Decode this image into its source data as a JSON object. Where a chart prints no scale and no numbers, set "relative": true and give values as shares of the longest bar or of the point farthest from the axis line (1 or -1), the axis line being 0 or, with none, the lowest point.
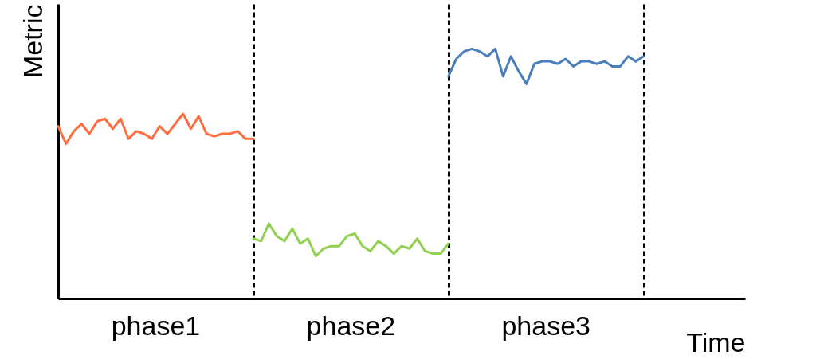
{
  "chart_data": {
    "type": "line",
    "relative": true,
    "xlabel": "Time",
    "ylabel": "Metric",
    "line_style": "solid",
    "grid": "x",
    "categories": [
      null,
      null,
      null,
      null,
      null,
      null,
      null,
      null,
      null,
      null,
      null,
      null,
      null,
      null,
      null,
      null,
      null,
      null,
      null,
      null,
      null,
      null,
      null,
      null,
      null,
      null,
      null,
      null,
      null,
      null,
      null,
      null,
      null,
      null,
      null,
      null,
      null,
      null,
      null,
      null,
      null,
      null,
      null,
      null,
      null,
      null,
      null,
      null,
      null,
      null,
      null,
      null,
      null,
      null,
      null,
      null,
      null,
      null,
      null,
      null,
      null,
      null,
      null,
      null,
      null,
      null,
      null,
      null,
      null,
      null,
      null,
      null,
      null,
      null,
      null,
      null,
      null,
      null,
      null,
      null,
      null,
      null,
      null,
      null,
      null,
      null,
      null,
      null,
      null
    ],
    "annotations": [
      "phase1",
      "phase2",
      "phase3"
    ],
    "series": [
      {
        "color": "#ff6e40",
        "values": [
          0.69,
          0.62,
          0.67,
          0.7,
          0.66,
          0.71,
          0.72,
          0.68,
          0.72,
          0.64,
          0.67,
          0.66,
          0.64,
          0.69,
          0.66,
          0.7,
          0.74,
          0.68,
          0.73,
          0.66,
          0.65,
          0.66,
          0.66,
          0.67,
          0.64,
          0.64,
          null,
          null,
          null,
          null,
          null,
          null,
          null,
          null,
          null,
          null,
          null,
          null,
          null,
          null,
          null,
          null,
          null,
          null,
          null,
          null,
          null,
          null,
          null,
          null,
          null,
          null,
          null,
          null,
          null,
          null,
          null,
          null,
          null,
          null,
          null,
          null,
          null,
          null,
          null,
          null,
          null,
          null,
          null,
          null,
          null,
          null,
          null,
          null,
          null,
          null,
          null,
          null,
          null,
          null,
          null,
          null,
          null,
          null,
          null,
          null,
          null,
          null,
          null
        ]
      },
      {
        "color": "#92d050",
        "values": [
          null,
          null,
          null,
          null,
          null,
          null,
          null,
          null,
          null,
          null,
          null,
          null,
          null,
          null,
          null,
          null,
          null,
          null,
          null,
          null,
          null,
          null,
          null,
          null,
          null,
          0.24,
          0.23,
          0.3,
          0.25,
          0.23,
          0.28,
          0.22,
          0.24,
          0.17,
          0.2,
          0.21,
          0.21,
          0.25,
          0.26,
          0.21,
          0.19,
          0.23,
          0.21,
          0.18,
          0.21,
          0.2,
          0.24,
          0.19,
          0.18,
          0.18,
          0.22,
          null,
          null,
          null,
          null,
          null,
          null,
          null,
          null,
          null,
          null,
          null,
          null,
          null,
          null,
          null,
          null,
          null,
          null,
          null,
          null,
          null,
          null,
          null,
          null,
          null,
          null,
          null,
          null,
          null,
          null,
          null,
          null,
          null,
          null,
          null,
          null,
          null,
          null
        ]
      },
      {
        "color": "#4a7ebb",
        "values": [
          null,
          null,
          null,
          null,
          null,
          null,
          null,
          null,
          null,
          null,
          null,
          null,
          null,
          null,
          null,
          null,
          null,
          null,
          null,
          null,
          null,
          null,
          null,
          null,
          null,
          null,
          null,
          null,
          null,
          null,
          null,
          null,
          null,
          null,
          null,
          null,
          null,
          null,
          null,
          null,
          null,
          null,
          null,
          null,
          null,
          null,
          null,
          null,
          null,
          null,
          0.89,
          0.96,
          0.99,
          1.0,
          0.99,
          0.97,
          1.0,
          0.89,
          0.97,
          0.91,
          0.86,
          0.94,
          0.95,
          0.95,
          0.94,
          0.96,
          0.93,
          0.95,
          0.95,
          0.94,
          0.95,
          0.93,
          0.93,
          0.97,
          0.95,
          0.97,
          null,
          null,
          null,
          null,
          null,
          null,
          null,
          null,
          null,
          null,
          null,
          null,
          null
        ]
      }
    ]
  }
}
